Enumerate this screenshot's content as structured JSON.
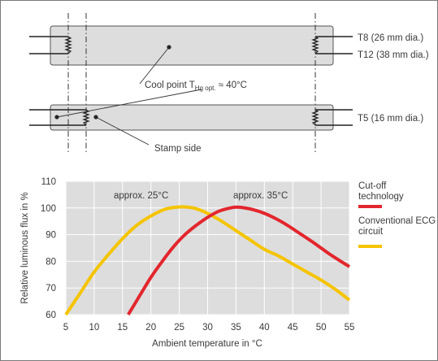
{
  "diagram": {
    "labels": {
      "t8": "T8 (26 mm dia.)",
      "t12": "T12 (38 mm dia.)",
      "t5": "T5 (16 mm dia.)",
      "cool_point_main": "Cool point T",
      "cool_point_sub": "Hg opt.",
      "cool_point_value": " ≈ 40°C",
      "stamp_side": "Stamp side"
    },
    "colors": {
      "tube_fill": "#dddddd",
      "tube_stroke": "#555555"
    }
  },
  "chart_data": {
    "type": "line",
    "xlabel": "Ambient temperature in °C",
    "ylabel": "Relative luminous flux in %",
    "xlim": [
      5,
      55
    ],
    "ylim": [
      60,
      110
    ],
    "grid": true,
    "x_ticks": [
      "5",
      "10",
      "15",
      "20",
      "25",
      "30",
      "35",
      "40",
      "45",
      "50",
      "55"
    ],
    "y_ticks": [
      "60",
      "70",
      "80",
      "90",
      "100",
      "110"
    ],
    "annotations": [
      {
        "text": "approx. 25°C",
        "x": 25
      },
      {
        "text": "approx. 35°C",
        "x": 35
      }
    ],
    "series": [
      {
        "name": "Cut-off technology",
        "color": "#e3262d",
        "x": [
          16,
          18,
          20,
          22,
          24,
          26,
          28,
          30,
          32,
          34,
          35,
          36,
          38,
          40,
          42,
          44,
          46,
          48,
          50,
          52,
          55
        ],
        "y": [
          60,
          67,
          74,
          80,
          85.5,
          90,
          93.5,
          96.5,
          98.8,
          100,
          100.3,
          100.2,
          99.4,
          98,
          96,
          93.6,
          90.8,
          88,
          85,
          82,
          78
        ]
      },
      {
        "name": "Conventional ECG circuit",
        "color": "#f5c400",
        "x": [
          5,
          7.5,
          10,
          12.5,
          15,
          17.5,
          20,
          22.5,
          25,
          27.5,
          30,
          32.5,
          35,
          37.5,
          40,
          42.5,
          45,
          47.5,
          50,
          52.5,
          55
        ],
        "y": [
          60,
          68,
          76,
          82.5,
          88.5,
          93.5,
          97,
          99.5,
          100.4,
          100,
          98,
          95,
          91.5,
          88,
          84.5,
          82,
          79,
          76,
          73,
          69.5,
          65.5
        ]
      }
    ]
  }
}
